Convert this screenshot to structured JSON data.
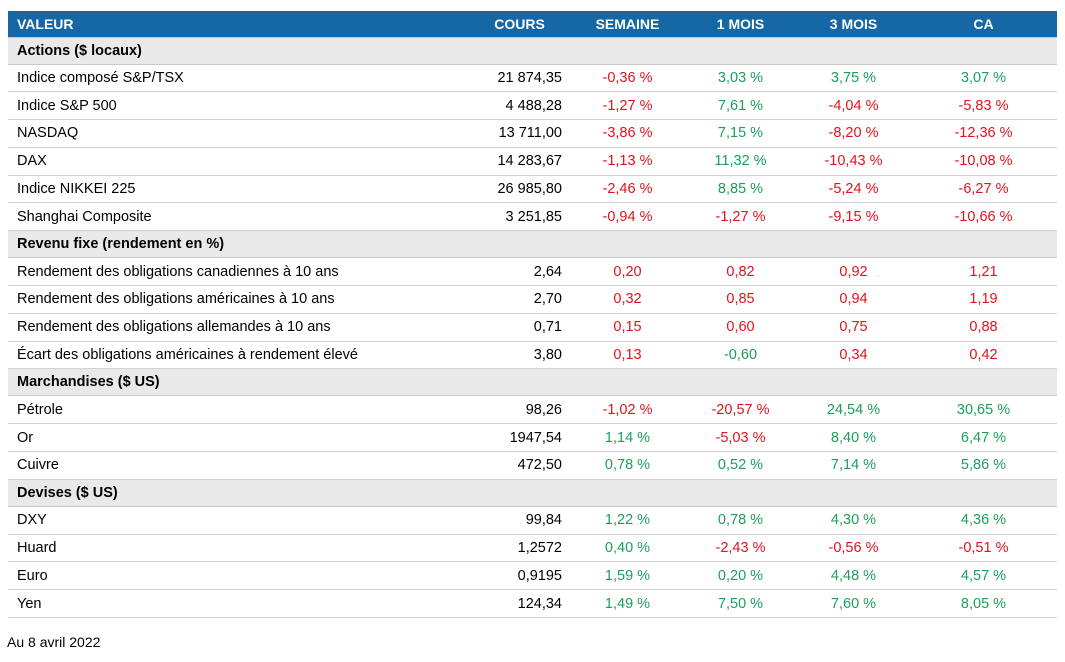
{
  "header": {
    "valeur": "VALEUR",
    "cours": "COURS",
    "semaine": "SEMAINE",
    "mois1": "1 MOIS",
    "mois3": "3 MOIS",
    "ca": "CA"
  },
  "colors": {
    "header_bg": "#1567a6",
    "positive": "#1aa05a",
    "negative": "#e0131d",
    "section_bg": "#e9e9e9"
  },
  "sections": [
    {
      "title": "Actions ($ locaux)",
      "rows": [
        {
          "name": "Indice composé S&P/TSX",
          "cours": "21 874,35",
          "semaine": "-0,36 %",
          "mois1": "3,03 %",
          "mois3": "3,75 %",
          "ca": "3,07 %",
          "c": [
            "neg",
            "pos",
            "pos",
            "pos"
          ]
        },
        {
          "name": "Indice S&P 500",
          "cours": "4 488,28",
          "semaine": "-1,27 %",
          "mois1": "7,61 %",
          "mois3": "-4,04 %",
          "ca": "-5,83 %",
          "c": [
            "neg",
            "pos",
            "neg",
            "neg"
          ]
        },
        {
          "name": "NASDAQ",
          "cours": "13 711,00",
          "semaine": "-3,86 %",
          "mois1": "7,15 %",
          "mois3": "-8,20 %",
          "ca": "-12,36 %",
          "c": [
            "neg",
            "pos",
            "neg",
            "neg"
          ]
        },
        {
          "name": "DAX",
          "cours": "14 283,67",
          "semaine": "-1,13 %",
          "mois1": "11,32 %",
          "mois3": "-10,43 %",
          "ca": "-10,08 %",
          "c": [
            "neg",
            "pos",
            "neg",
            "neg"
          ]
        },
        {
          "name": "Indice NIKKEI 225",
          "cours": "26 985,80",
          "semaine": "-2,46 %",
          "mois1": "8,85 %",
          "mois3": "-5,24 %",
          "ca": "-6,27 %",
          "c": [
            "neg",
            "pos",
            "neg",
            "neg"
          ]
        },
        {
          "name": "Shanghai Composite",
          "cours": "3 251,85",
          "semaine": "-0,94 %",
          "mois1": "-1,27 %",
          "mois3": "-9,15 %",
          "ca": "-10,66 %",
          "c": [
            "neg",
            "neg",
            "neg",
            "neg"
          ]
        }
      ]
    },
    {
      "title": "Revenu fixe (rendement en %)",
      "rows": [
        {
          "name": "Rendement des obligations canadiennes à 10 ans",
          "cours": "2,64",
          "semaine": "0,20",
          "mois1": "0,82",
          "mois3": "0,92",
          "ca": "1,21",
          "c": [
            "neg",
            "neg",
            "neg",
            "neg"
          ]
        },
        {
          "name": "Rendement des obligations américaines à 10 ans",
          "cours": "2,70",
          "semaine": "0,32",
          "mois1": "0,85",
          "mois3": "0,94",
          "ca": "1,19",
          "c": [
            "neg",
            "neg",
            "neg",
            "neg"
          ]
        },
        {
          "name": "Rendement des obligations allemandes à 10 ans",
          "cours": "0,71",
          "semaine": "0,15",
          "mois1": "0,60",
          "mois3": "0,75",
          "ca": "0,88",
          "c": [
            "neg",
            "neg",
            "neg",
            "neg"
          ]
        },
        {
          "name": "Écart des obligations américaines à rendement élevé",
          "cours": "3,80",
          "semaine": "0,13",
          "mois1": "-0,60",
          "mois3": "0,34",
          "ca": "0,42",
          "c": [
            "neg",
            "pos",
            "neg",
            "neg"
          ]
        }
      ]
    },
    {
      "title": "Marchandises ($ US)",
      "rows": [
        {
          "name": "Pétrole",
          "cours": "98,26",
          "semaine": "-1,02 %",
          "mois1": "-20,57 %",
          "mois3": "24,54 %",
          "ca": "30,65 %",
          "c": [
            "neg",
            "neg",
            "pos",
            "pos"
          ]
        },
        {
          "name": "Or",
          "cours": "1947,54",
          "semaine": "1,14 %",
          "mois1": "-5,03 %",
          "mois3": "8,40 %",
          "ca": "6,47 %",
          "c": [
            "pos",
            "neg",
            "pos",
            "pos"
          ]
        },
        {
          "name": "Cuivre",
          "cours": "472,50",
          "semaine": "0,78 %",
          "mois1": "0,52 %",
          "mois3": "7,14 %",
          "ca": "5,86 %",
          "c": [
            "pos",
            "pos",
            "pos",
            "pos"
          ]
        }
      ]
    },
    {
      "title": "Devises ($ US)",
      "rows": [
        {
          "name": "DXY",
          "cours": "99,84",
          "semaine": "1,22 %",
          "mois1": "0,78 %",
          "mois3": "4,30 %",
          "ca": "4,36 %",
          "c": [
            "pos",
            "pos",
            "pos",
            "pos"
          ]
        },
        {
          "name": "Huard",
          "cours": "1,2572",
          "semaine": "0,40 %",
          "mois1": "-2,43 %",
          "mois3": "-0,56 %",
          "ca": "-0,51 %",
          "c": [
            "pos",
            "neg",
            "neg",
            "neg"
          ]
        },
        {
          "name": "Euro",
          "cours": "0,9195",
          "semaine": "1,59 %",
          "mois1": "0,20 %",
          "mois3": "4,48 %",
          "ca": "4,57 %",
          "c": [
            "pos",
            "pos",
            "pos",
            "pos"
          ]
        },
        {
          "name": "Yen",
          "cours": "124,34",
          "semaine": "1,49 %",
          "mois1": "7,50 %",
          "mois3": "7,60 %",
          "ca": "8,05 %",
          "c": [
            "pos",
            "pos",
            "pos",
            "pos"
          ]
        }
      ]
    }
  ],
  "footnote": "Au 8 avril 2022"
}
